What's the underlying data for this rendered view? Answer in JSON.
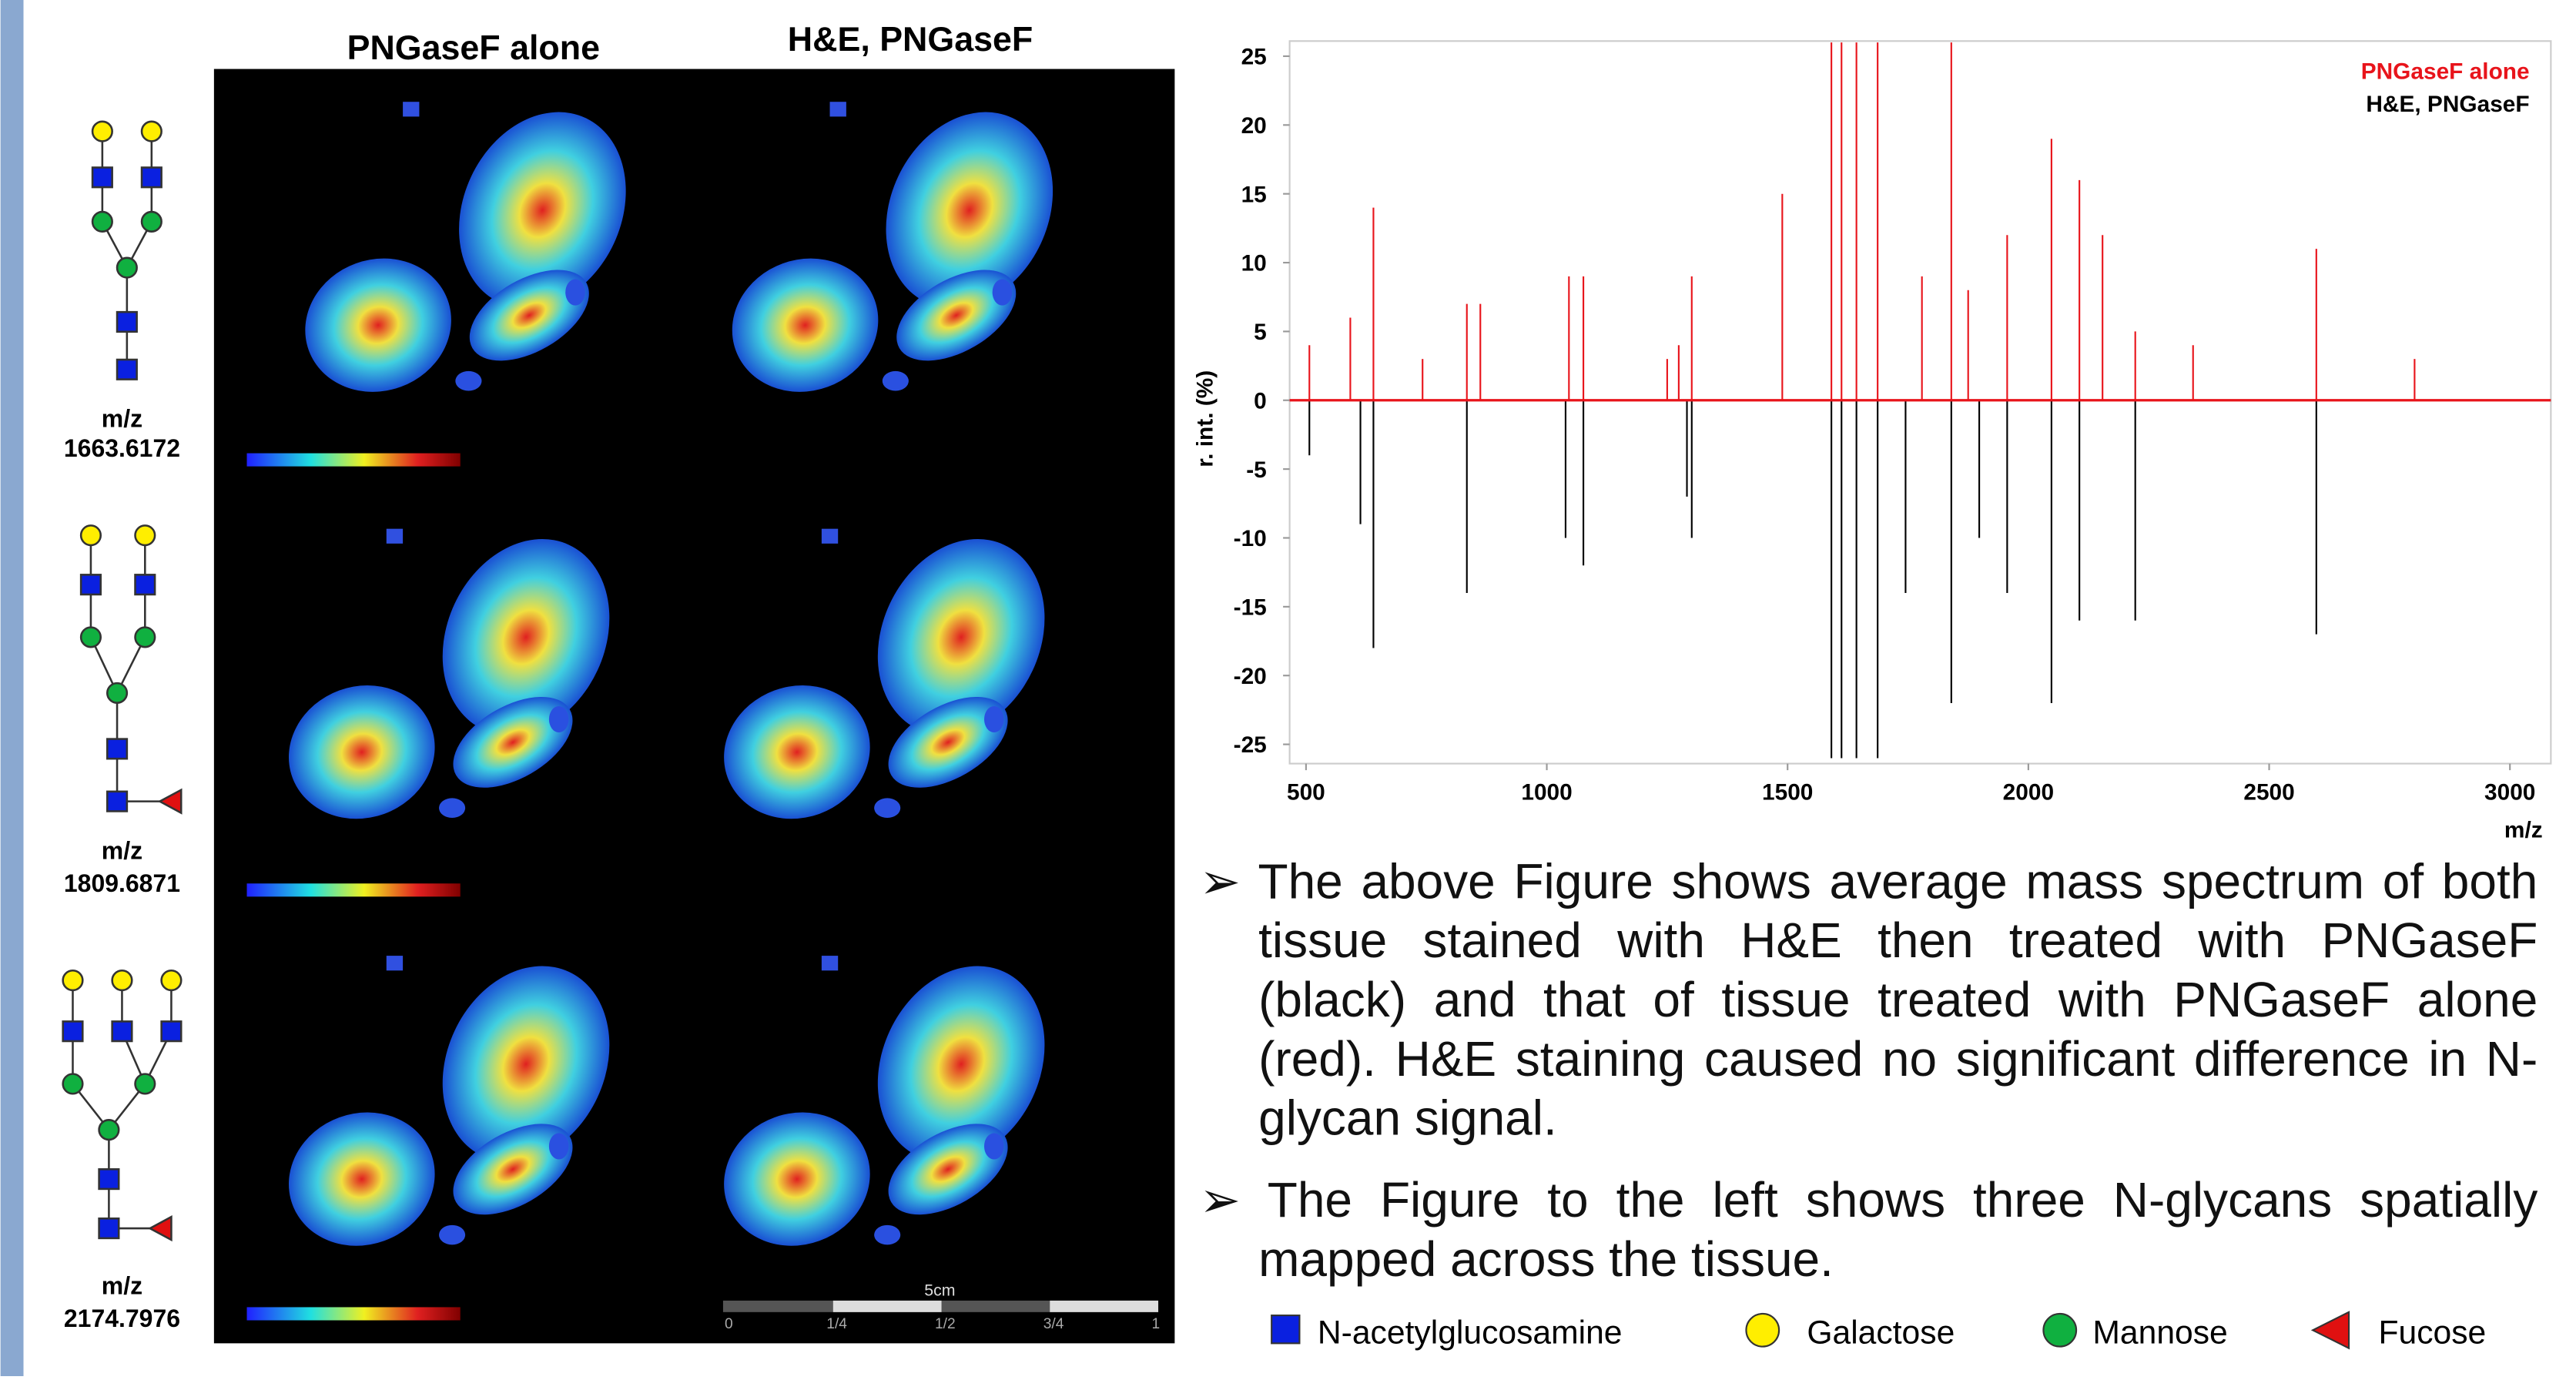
{
  "images": {
    "columns": [
      "PNGaseF alone",
      "H&E, PNGaseF"
    ],
    "scale_bar": {
      "label": "5cm",
      "ticks": [
        "0",
        "1/4",
        "1/2",
        "3/4",
        "1"
      ]
    }
  },
  "glycans": [
    {
      "mz_label": "m/z",
      "mz": "1663.6172"
    },
    {
      "mz_label": "m/z",
      "mz": "1809.6871"
    },
    {
      "mz_label": "m/z",
      "mz": "2174.7976"
    }
  ],
  "chart_data": {
    "type": "bar",
    "ylabel": "r. int. (%)",
    "xlabel": "m/z",
    "xlim": [
      466,
      3085
    ],
    "ylim": [
      -26.4,
      26.1
    ],
    "xticks": [
      500,
      1000,
      1500,
      2000,
      2500,
      3000
    ],
    "yticks": [
      25,
      20,
      15,
      10,
      5,
      0,
      -5,
      -10,
      -15,
      -20,
      -25
    ],
    "series": [
      {
        "name": "PNGaseF alone",
        "color": "#e8141b",
        "x": [
          507,
          592,
          640,
          742,
          834,
          862,
          1046,
          1076,
          1250,
          1274,
          1301,
          1489,
          1591,
          1612,
          1643,
          1687,
          1779,
          1840,
          1875,
          1956,
          2048,
          2106,
          2154,
          2222,
          2342,
          2598,
          2802
        ],
        "values": [
          4,
          6,
          14,
          3,
          7,
          7,
          9,
          9,
          3,
          4,
          9,
          15,
          26,
          26,
          26,
          26,
          9,
          26,
          8,
          12,
          19,
          16,
          12,
          5,
          4,
          11,
          3
        ]
      },
      {
        "name": "H&E, PNGaseF",
        "color": "#000000",
        "x": [
          507,
          613,
          640,
          834,
          1039,
          1076,
          1291,
          1301,
          1591,
          1612,
          1643,
          1687,
          1745,
          1840,
          1898,
          1956,
          2048,
          2106,
          2222,
          2598
        ],
        "values": [
          -4,
          -9,
          -18,
          -14,
          -10,
          -12,
          -7,
          -10,
          -26,
          -26,
          -26,
          -26,
          -14,
          -22,
          -10,
          -14,
          -22,
          -16,
          -16,
          -17
        ]
      }
    ]
  },
  "text": {
    "bullets": [
      "The above Figure shows average mass spectrum of both tissue stained with H&E then treated with PNGaseF (black) and that of tissue treated with PNGaseF alone (red). H&E staining caused no significant difference in N-glycan signal.",
      "The Figure to the left shows three N-glycans spatially mapped across the tissue."
    ]
  },
  "legend": [
    "N-acetylglucosamine",
    "Galactose",
    "Mannose",
    "Fucose"
  ]
}
